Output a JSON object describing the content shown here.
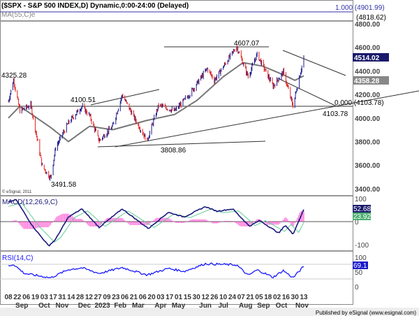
{
  "header": {
    "title": "($SPX - S&P 500 INDEX,D) Dynamic,0:00-24:00 (Delayed)",
    "ma_label": "MA(55,C)e"
  },
  "copyright": "© eSignal, 2011",
  "footer": "Published by eSignal (www.esignal.com)",
  "colors": {
    "up": "#1a1a8c",
    "down": "#e0201e",
    "ma": "#777777",
    "macd": "#1a1a7c",
    "signal": "#66cc99",
    "hist": "#ff44cc",
    "rsi": "#1a1aff"
  },
  "chart_data": [
    {
      "type": "line",
      "title": "S&P 500 Index daily",
      "ylim": [
        3400,
        4900
      ],
      "yticks": [
        "4800.00",
        "4600.00",
        "4400.00",
        "4200.00",
        "4000.00",
        "3800.00",
        "3600.00",
        "3400.00"
      ],
      "ytick_values": [
        4800,
        4600,
        4400,
        4200,
        4000,
        3800,
        3600,
        3400
      ],
      "price": [
        [
          "2022-08-08",
          4140
        ],
        [
          "2022-08-16",
          4325
        ],
        [
          "2022-08-26",
          4060
        ],
        [
          "2022-09-12",
          4110
        ],
        [
          "2022-09-30",
          3590
        ],
        [
          "2022-10-13",
          3491
        ],
        [
          "2022-10-21",
          3750
        ],
        [
          "2022-11-10",
          3960
        ],
        [
          "2022-12-01",
          4100
        ],
        [
          "2022-12-13",
          4020
        ],
        [
          "2022-12-28",
          3808
        ],
        [
          "2023-01-18",
          3930
        ],
        [
          "2023-02-02",
          4195
        ],
        [
          "2023-02-24",
          3970
        ],
        [
          "2023-03-13",
          3808
        ],
        [
          "2023-03-31",
          4110
        ],
        [
          "2023-04-25",
          4060
        ],
        [
          "2023-05-18",
          4200
        ],
        [
          "2023-06-15",
          4420
        ],
        [
          "2023-06-26",
          4320
        ],
        [
          "2023-07-31",
          4607
        ],
        [
          "2023-08-18",
          4350
        ],
        [
          "2023-09-01",
          4540
        ],
        [
          "2023-09-26",
          4270
        ],
        [
          "2023-10-12",
          4390
        ],
        [
          "2023-10-27",
          4103
        ],
        [
          "2023-11-13",
          4514
        ]
      ],
      "ma55": [
        [
          "2022-08-08",
          4000
        ],
        [
          "2022-08-26",
          4100
        ],
        [
          "2022-10-13",
          3920
        ],
        [
          "2022-11-10",
          3800
        ],
        [
          "2022-12-13",
          3930
        ],
        [
          "2023-01-18",
          3900
        ],
        [
          "2023-03-13",
          3980
        ],
        [
          "2023-04-25",
          4030
        ],
        [
          "2023-05-30",
          4150
        ],
        [
          "2023-07-10",
          4350
        ],
        [
          "2023-08-10",
          4470
        ],
        [
          "2023-09-10",
          4440
        ],
        [
          "2023-10-15",
          4360
        ],
        [
          "2023-10-30",
          4320
        ],
        [
          "2023-11-13",
          4358
        ]
      ],
      "last_price": "4514.02",
      "last_ma": "4358.28",
      "annotations": [
        "4325.28",
        "4100.51",
        "3491.58",
        "3808.86",
        "4607.07",
        "4103.78",
        "0.000 (4103.78)",
        "1.000 (4901.99)",
        "(4818.62)"
      ],
      "fib_levels": [
        4103.78,
        4818.62,
        4901.99
      ]
    },
    {
      "type": "line",
      "title": "MACD(12,26,9,C)",
      "ylim": [
        -120,
        120
      ],
      "yticks": [
        "100",
        "0",
        "-100"
      ],
      "ytick_values": [
        100,
        0,
        -100
      ],
      "macd": [
        [
          "2022-08-08",
          85
        ],
        [
          "2022-08-20",
          95
        ],
        [
          "2022-09-15",
          -20
        ],
        [
          "2022-10-10",
          -105
        ],
        [
          "2022-10-20",
          -80
        ],
        [
          "2022-11-10",
          20
        ],
        [
          "2022-12-01",
          55
        ],
        [
          "2022-12-28",
          -25
        ],
        [
          "2023-02-02",
          55
        ],
        [
          "2023-03-15",
          -30
        ],
        [
          "2023-04-15",
          40
        ],
        [
          "2023-05-10",
          20
        ],
        [
          "2023-06-12",
          65
        ],
        [
          "2023-06-30",
          45
        ],
        [
          "2023-07-25",
          55
        ],
        [
          "2023-08-20",
          -20
        ],
        [
          "2023-09-05",
          5
        ],
        [
          "2023-10-05",
          -50
        ],
        [
          "2023-10-15",
          -15
        ],
        [
          "2023-10-27",
          -55
        ],
        [
          "2023-11-13",
          52.68
        ]
      ],
      "last_macd": "52.68",
      "last_signal": "23.92"
    },
    {
      "type": "line",
      "title": "RSI(14,C)",
      "ylim": [
        0,
        100
      ],
      "yticks": [
        "100",
        "50",
        "0"
      ],
      "ytick_values": [
        100,
        50,
        0
      ],
      "rsi": [
        [
          "2022-08-08",
          70
        ],
        [
          "2022-08-16",
          76
        ],
        [
          "2022-09-02",
          45
        ],
        [
          "2022-10-13",
          30
        ],
        [
          "2022-11-10",
          58
        ],
        [
          "2022-12-01",
          64
        ],
        [
          "2022-12-28",
          45
        ],
        [
          "2023-02-02",
          65
        ],
        [
          "2023-03-13",
          40
        ],
        [
          "2023-04-15",
          62
        ],
        [
          "2023-05-10",
          52
        ],
        [
          "2023-06-12",
          78
        ],
        [
          "2023-07-31",
          74
        ],
        [
          "2023-08-18",
          38
        ],
        [
          "2023-09-01",
          57
        ],
        [
          "2023-09-26",
          32
        ],
        [
          "2023-10-12",
          55
        ],
        [
          "2023-10-27",
          30
        ],
        [
          "2023-11-13",
          69.1
        ]
      ],
      "last_rsi": "69.1"
    },
    {
      "type": "axis",
      "xticks": [
        "08",
        "22",
        "06",
        "19",
        "03",
        "17",
        "31",
        "14",
        "28",
        "12",
        "27",
        "09",
        "23",
        "06",
        "21",
        "06",
        "20",
        "03",
        "17",
        "01",
        "15",
        "30",
        "12",
        "26",
        "10",
        "24",
        "07",
        "21",
        "05",
        "18",
        "02",
        "16",
        "30",
        "13"
      ],
      "months": [
        "Sep",
        "Oct",
        "Nov",
        "Dec",
        "2023",
        "Feb",
        "Mar",
        "Apr",
        "May",
        "Jun",
        "Jul",
        "Aug",
        "Sep",
        "Oct",
        "Nov"
      ]
    }
  ]
}
